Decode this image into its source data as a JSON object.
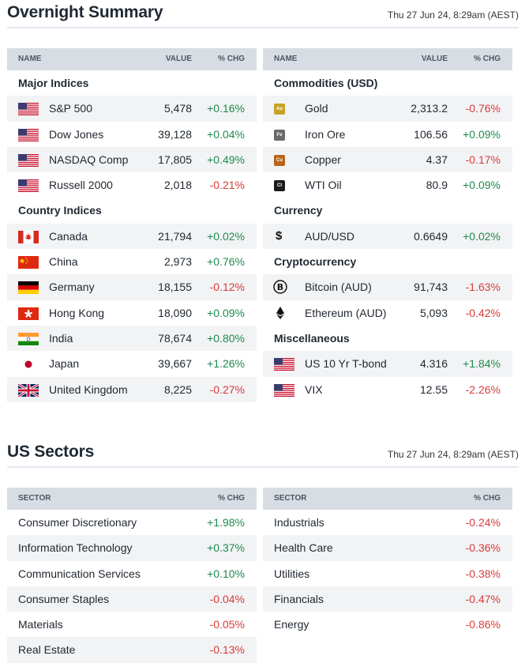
{
  "overnight": {
    "title": "Overnight Summary",
    "timestamp": "Thu 27 Jun 24, 8:29am (AEST)",
    "left": {
      "headers": {
        "name": "NAME",
        "value": "VALUE",
        "chg": "% CHG"
      },
      "groups": [
        {
          "title": "Major Indices",
          "rows": [
            {
              "name": "S&P 500",
              "value": "5,478",
              "chg": "+0.16%",
              "flag": "us"
            },
            {
              "name": "Dow Jones",
              "value": "39,128",
              "chg": "+0.04%",
              "flag": "us"
            },
            {
              "name": "NASDAQ Comp",
              "value": "17,805",
              "chg": "+0.49%",
              "flag": "us"
            },
            {
              "name": "Russell 2000",
              "value": "2,018",
              "chg": "-0.21%",
              "flag": "us"
            }
          ]
        },
        {
          "title": "Country Indices",
          "rows": [
            {
              "name": "Canada",
              "value": "21,794",
              "chg": "+0.02%",
              "flag": "ca"
            },
            {
              "name": "China",
              "value": "2,973",
              "chg": "+0.76%",
              "flag": "cn"
            },
            {
              "name": "Germany",
              "value": "18,155",
              "chg": "-0.12%",
              "flag": "de"
            },
            {
              "name": "Hong Kong",
              "value": "18,090",
              "chg": "+0.09%",
              "flag": "hk"
            },
            {
              "name": "India",
              "value": "78,674",
              "chg": "+0.80%",
              "flag": "in"
            },
            {
              "name": "Japan",
              "value": "39,667",
              "chg": "+1.26%",
              "flag": "jp"
            },
            {
              "name": "United Kingdom",
              "value": "8,225",
              "chg": "-0.27%",
              "flag": "gb"
            }
          ]
        }
      ]
    },
    "right": {
      "headers": {
        "name": "NAME",
        "value": "VALUE",
        "chg": "% CHG"
      },
      "groups": [
        {
          "title": "Commodities (USD)",
          "rows": [
            {
              "name": "Gold",
              "value": "2,313.2",
              "chg": "-0.76%",
              "icon": "Au",
              "icon_color": "#c9a227"
            },
            {
              "name": "Iron Ore",
              "value": "106.56",
              "chg": "+0.09%",
              "icon": "Fe",
              "icon_color": "#6b6b6b"
            },
            {
              "name": "Copper",
              "value": "4.37",
              "chg": "-0.17%",
              "icon": "Cu",
              "icon_color": "#b8651b"
            },
            {
              "name": "WTI Oil",
              "value": "80.9",
              "chg": "+0.09%",
              "icon": "Cl",
              "icon_color": "#1c1c1c"
            }
          ]
        },
        {
          "title": "Currency",
          "rows": [
            {
              "name": "AUD/USD",
              "value": "0.6649",
              "chg": "+0.02%",
              "icon": "$"
            }
          ]
        },
        {
          "title": "Cryptocurrency",
          "rows": [
            {
              "name": "Bitcoin (AUD)",
              "value": "91,743",
              "chg": "-1.63%",
              "icon": "bitcoin"
            },
            {
              "name": "Ethereum (AUD)",
              "value": "5,093",
              "chg": "-0.42%",
              "icon": "ethereum"
            }
          ]
        },
        {
          "title": "Miscellaneous",
          "rows": [
            {
              "name": "US 10 Yr T-bond",
              "value": "4.316",
              "chg": "+1.84%",
              "flag": "us"
            },
            {
              "name": "VIX",
              "value": "12.55",
              "chg": "-2.26%",
              "flag": "us"
            }
          ]
        }
      ]
    }
  },
  "sectors": {
    "title": "US Sectors",
    "timestamp": "Thu 27 Jun 24, 8:29am (AEST)",
    "headers": {
      "sector": "SECTOR",
      "chg": "% CHG"
    },
    "left": [
      {
        "name": "Consumer Discretionary",
        "chg": "+1.98%"
      },
      {
        "name": "Information Technology",
        "chg": "+0.37%"
      },
      {
        "name": "Communication Services",
        "chg": "+0.10%"
      },
      {
        "name": "Consumer Staples",
        "chg": "-0.04%"
      },
      {
        "name": "Materials",
        "chg": "-0.05%"
      },
      {
        "name": "Real Estate",
        "chg": "-0.13%"
      }
    ],
    "right": [
      {
        "name": "Industrials",
        "chg": "-0.24%"
      },
      {
        "name": "Health Care",
        "chg": "-0.36%"
      },
      {
        "name": "Utilities",
        "chg": "-0.38%"
      },
      {
        "name": "Financials",
        "chg": "-0.47%"
      },
      {
        "name": "Energy",
        "chg": "-0.86%"
      }
    ]
  },
  "colors": {
    "positive": "#1f8a4c",
    "negative": "#d93a3a",
    "header_bg": "#d8dde3",
    "stripe": "#f2f3f5"
  }
}
